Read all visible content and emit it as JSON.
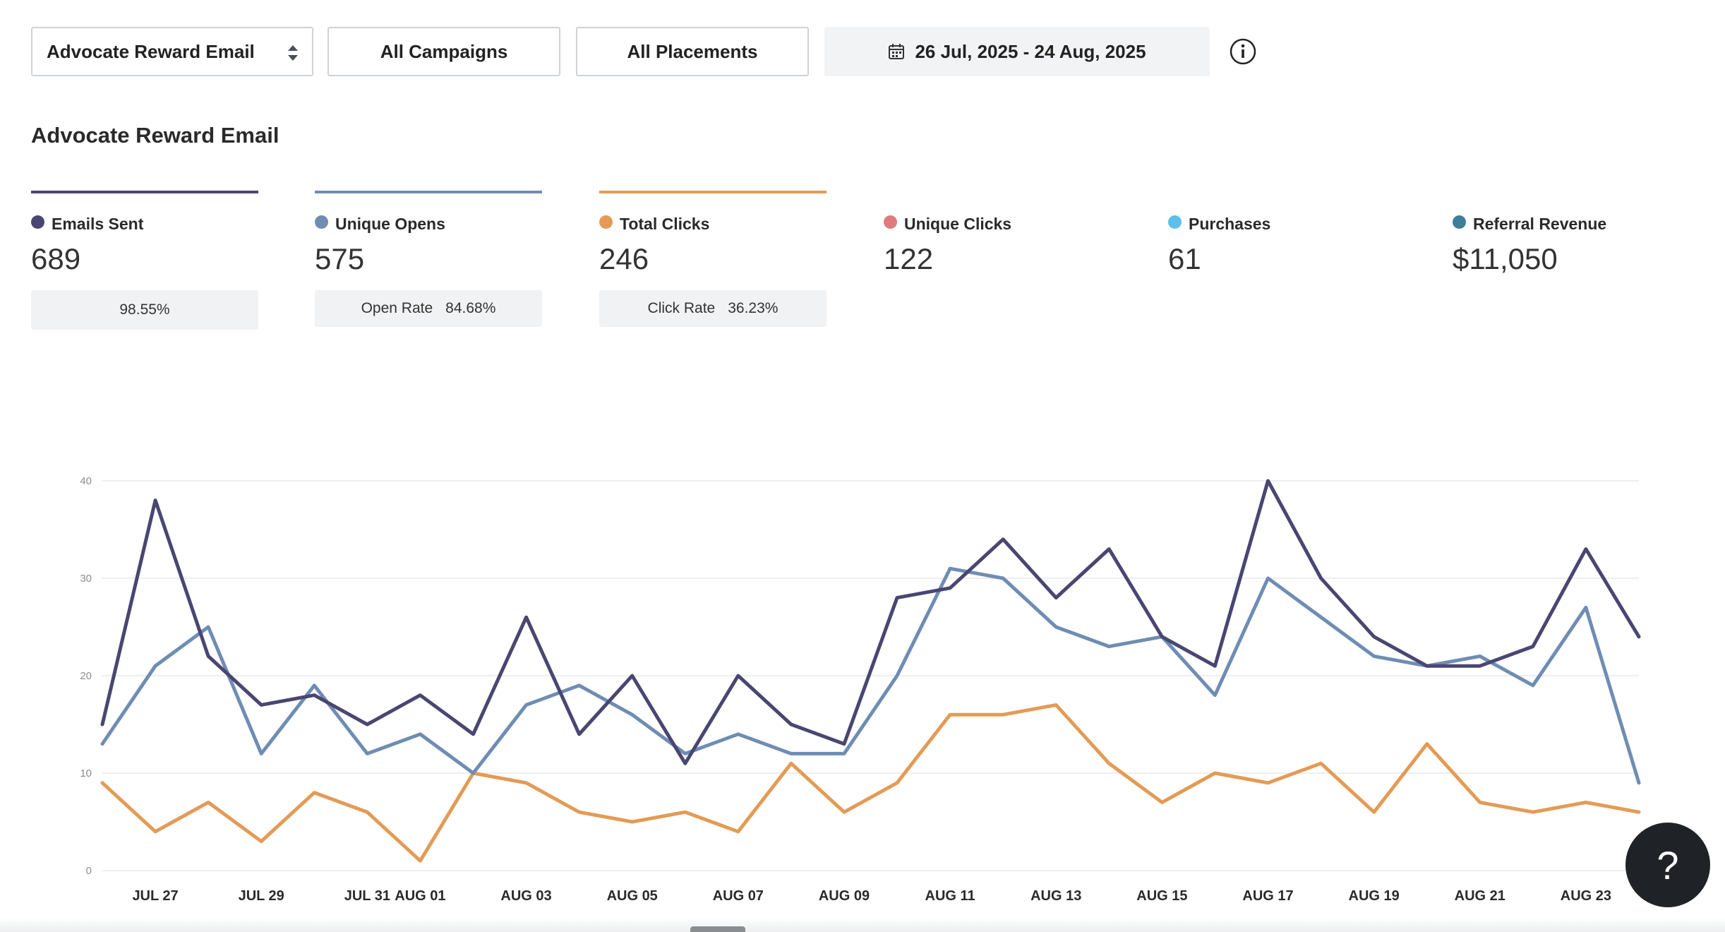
{
  "toolbar": {
    "email_select": "Advocate Reward Email",
    "campaigns": "All Campaigns",
    "placements": "All Placements",
    "date_range": "26 Jul, 2025 - 24 Aug, 2025"
  },
  "section_title": "Advocate Reward Email",
  "metrics": [
    {
      "label": "Emails Sent",
      "value": "689",
      "color": "#4a4672",
      "rate_label": "",
      "rate_value": "98.55%"
    },
    {
      "label": "Unique Opens",
      "value": "575",
      "color": "#6f8db3",
      "rate_label": "Open Rate",
      "rate_value": "84.68%"
    },
    {
      "label": "Total Clicks",
      "value": "246",
      "color": "#e39b55",
      "rate_label": "Click Rate",
      "rate_value": "36.23%"
    },
    {
      "label": "Unique Clicks",
      "value": "122",
      "color": "#e07b7b"
    },
    {
      "label": "Purchases",
      "value": "61",
      "color": "#5dc0e8"
    },
    {
      "label": "Referral Revenue",
      "value": "$11,050",
      "color": "#3d7f99"
    }
  ],
  "chart_data": {
    "type": "line",
    "ylim": [
      0,
      40
    ],
    "y_ticks": [
      "0",
      "10",
      "20",
      "30",
      "40"
    ],
    "x": [
      "2025-07-26",
      "2025-07-27",
      "2025-07-28",
      "2025-07-29",
      "2025-07-30",
      "2025-07-31",
      "2025-08-01",
      "2025-08-02",
      "2025-08-03",
      "2025-08-04",
      "2025-08-05",
      "2025-08-06",
      "2025-08-07",
      "2025-08-08",
      "2025-08-09",
      "2025-08-10",
      "2025-08-11",
      "2025-08-12",
      "2025-08-13",
      "2025-08-14",
      "2025-08-15",
      "2025-08-16",
      "2025-08-17",
      "2025-08-18",
      "2025-08-19",
      "2025-08-20",
      "2025-08-21",
      "2025-08-22",
      "2025-08-23",
      "2025-08-24"
    ],
    "x_tick_labels": [
      {
        "date": "2025-07-27",
        "label": "JUL 27"
      },
      {
        "date": "2025-07-29",
        "label": "JUL 29"
      },
      {
        "date": "2025-07-31",
        "label": "JUL 31"
      },
      {
        "date": "2025-08-01",
        "label": "AUG 01"
      },
      {
        "date": "2025-08-03",
        "label": "AUG 03"
      },
      {
        "date": "2025-08-05",
        "label": "AUG 05"
      },
      {
        "date": "2025-08-07",
        "label": "AUG 07"
      },
      {
        "date": "2025-08-09",
        "label": "AUG 09"
      },
      {
        "date": "2025-08-11",
        "label": "AUG 11"
      },
      {
        "date": "2025-08-13",
        "label": "AUG 13"
      },
      {
        "date": "2025-08-15",
        "label": "AUG 15"
      },
      {
        "date": "2025-08-17",
        "label": "AUG 17"
      },
      {
        "date": "2025-08-19",
        "label": "AUG 19"
      },
      {
        "date": "2025-08-21",
        "label": "AUG 21"
      },
      {
        "date": "2025-08-23",
        "label": "AUG 23"
      }
    ],
    "series": [
      {
        "name": "Emails Sent",
        "color": "#4a4672",
        "values": [
          15,
          38,
          22,
          17,
          18,
          15,
          18,
          14,
          26,
          14,
          20,
          11,
          20,
          15,
          13,
          28,
          29,
          34,
          28,
          33,
          24,
          21,
          40,
          30,
          24,
          21,
          21,
          23,
          33,
          24
        ]
      },
      {
        "name": "Unique Opens",
        "color": "#6f8db3",
        "values": [
          13,
          21,
          25,
          12,
          19,
          12,
          14,
          10,
          17,
          19,
          16,
          12,
          14,
          12,
          12,
          20,
          31,
          30,
          25,
          23,
          24,
          18,
          30,
          26,
          22,
          21,
          22,
          19,
          27,
          9
        ]
      },
      {
        "name": "Total Clicks",
        "color": "#e39b55",
        "values": [
          9,
          4,
          7,
          3,
          8,
          6,
          1,
          10,
          9,
          6,
          5,
          6,
          4,
          11,
          6,
          9,
          16,
          16,
          17,
          11,
          7,
          10,
          9,
          11,
          6,
          13,
          7,
          6,
          7,
          6
        ]
      }
    ],
    "grid": true
  },
  "help": {
    "symbol": "?"
  }
}
